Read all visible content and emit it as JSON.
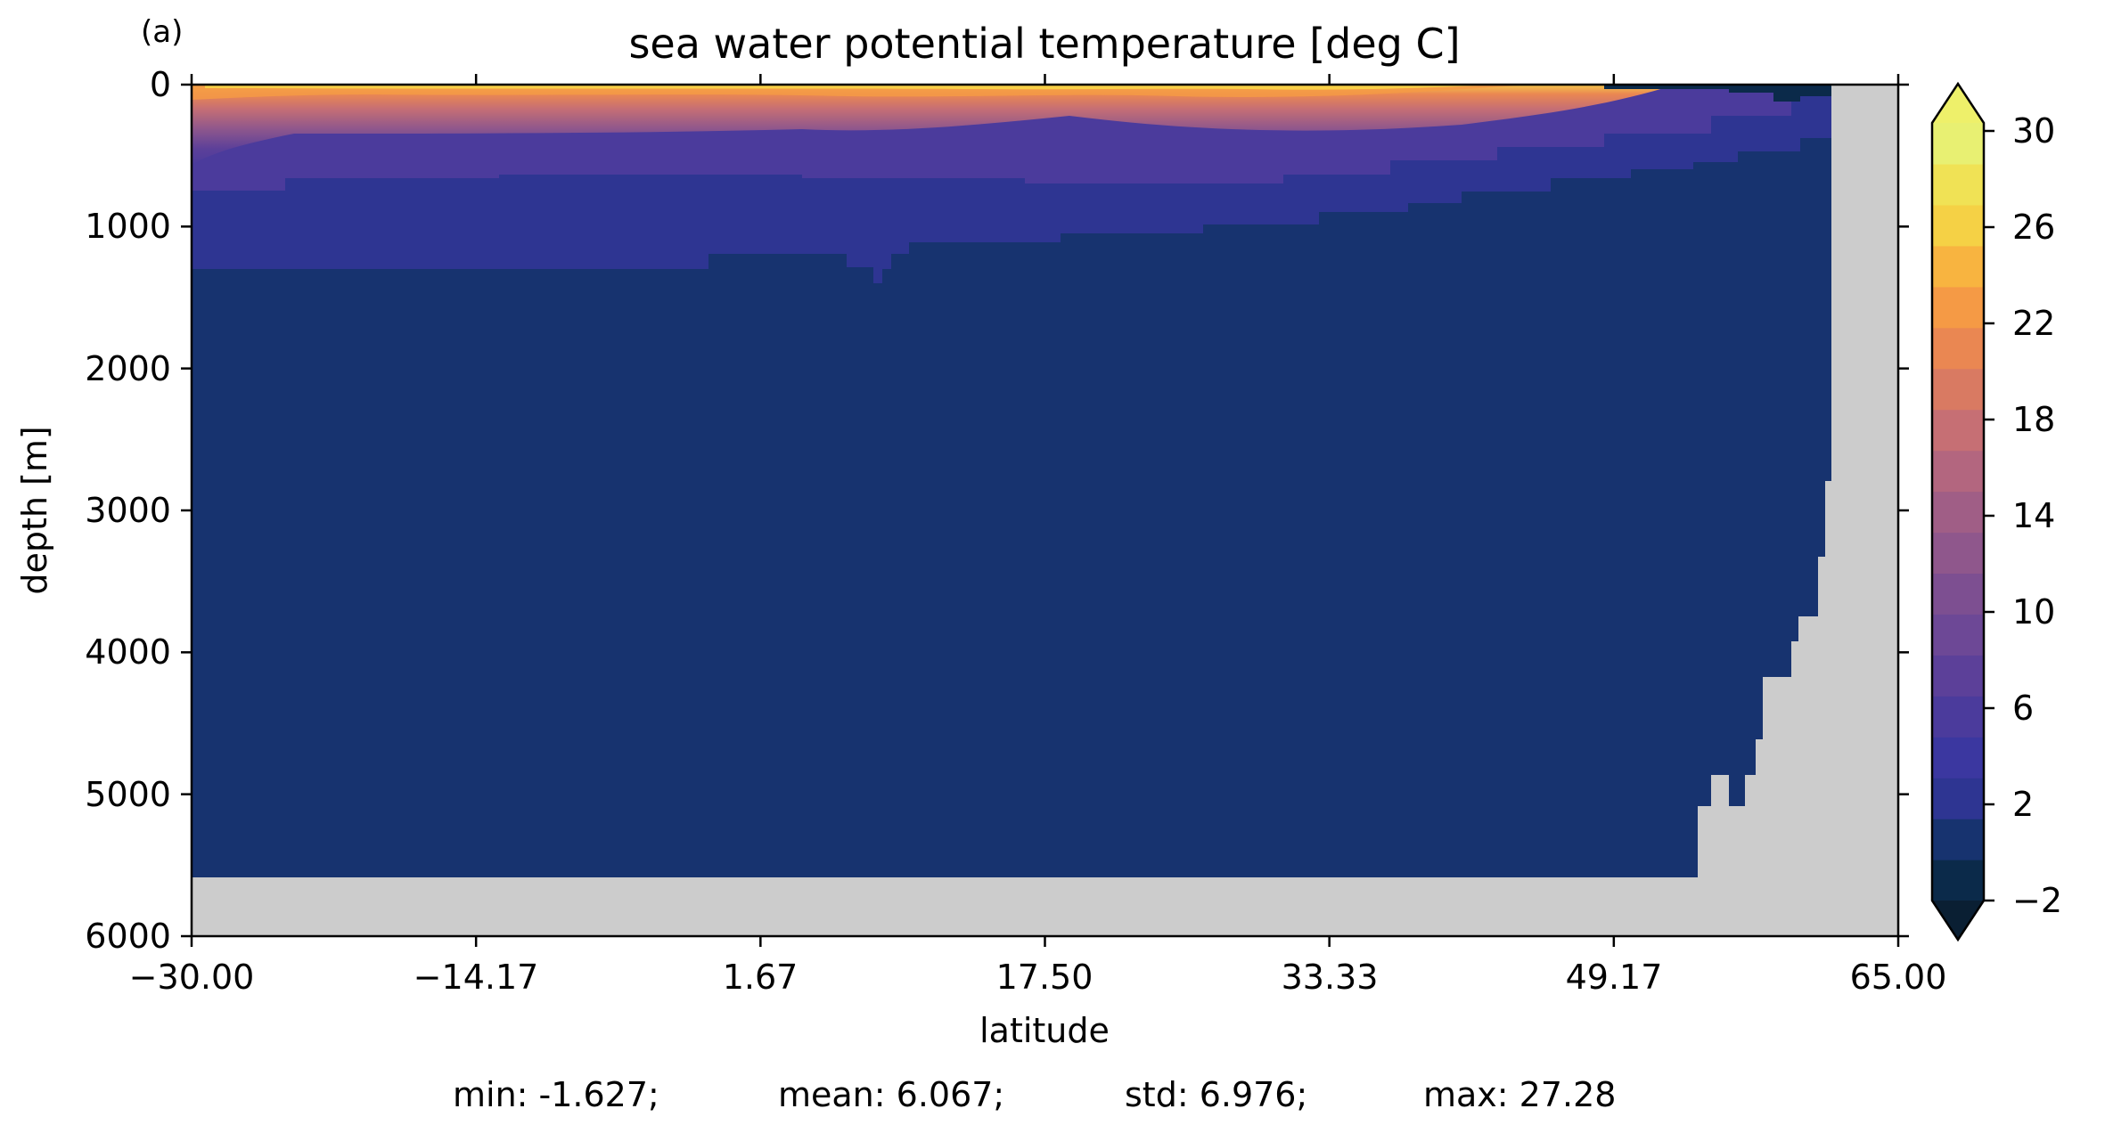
{
  "panel_label": "(a)",
  "chart_data": {
    "type": "heatmap",
    "title": "sea water potential temperature [deg C]",
    "xlabel": "latitude",
    "ylabel": "depth [m]",
    "xlim": [
      -30.0,
      65.0
    ],
    "ylim": [
      6000,
      0
    ],
    "y_inverted": true,
    "xticks": [
      "−30.00",
      "−14.17",
      "1.67",
      "17.50",
      "33.33",
      "49.17",
      "65.00"
    ],
    "yticks": [
      "0",
      "1000",
      "2000",
      "3000",
      "4000",
      "5000",
      "6000"
    ],
    "land_color": "#cccccc",
    "colorbar": {
      "ticks": [
        "−2",
        "2",
        "6",
        "10",
        "14",
        "18",
        "22",
        "26",
        "30"
      ],
      "levels": [
        -2,
        0,
        2,
        4,
        6,
        8,
        10,
        12,
        14,
        16,
        18,
        20,
        22,
        24,
        26,
        28,
        30
      ],
      "extend": "both",
      "colors": [
        "#0b2a4a",
        "#17336f",
        "#2e3592",
        "#3b37a0",
        "#4b3b9c",
        "#5c4099",
        "#6d4896",
        "#7d4f91",
        "#8f578c",
        "#a05e86",
        "#b3667f",
        "#c66f74",
        "#d97a62",
        "#ea8752",
        "#f59a45",
        "#f8b440",
        "#f5d145",
        "#f0e255",
        "#e8f072"
      ],
      "under_color": "#0a1f33",
      "over_color": "#eef06a"
    },
    "field_summary": {
      "deep_water": "-2 to 2",
      "intermediate_water": "2 to 6",
      "surface_max": "near 28 at tropical surface",
      "north_surface": "-2 to 0 near 50-62 latitude"
    },
    "stats": {
      "min": "min: -1.627;",
      "mean": "mean: 6.067;",
      "std": "std: 6.976;",
      "max": "max: 27.28"
    }
  }
}
